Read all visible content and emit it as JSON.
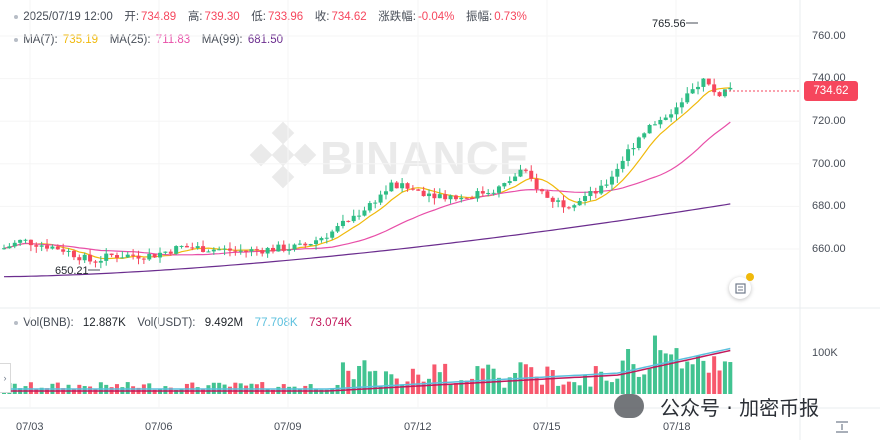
{
  "header": {
    "date": "2025/07/19 12:00",
    "open_label": "开:",
    "open": "734.89",
    "high_label": "高:",
    "high": "739.30",
    "low_label": "低:",
    "low": "733.96",
    "close_label": "收:",
    "close": "734.62",
    "change_label": "涨跌幅:",
    "change": "-0.04%",
    "amplitude_label": "振幅:",
    "amplitude": "0.73%"
  },
  "ma_legend": {
    "ma7_label": "MA(7):",
    "ma7": "735.19",
    "ma25_label": "MA(25):",
    "ma25": "711.83",
    "ma99_label": "MA(99):",
    "ma99": "681.50"
  },
  "volume_legend": {
    "vol_bnb_label": "Vol(BNB):",
    "vol_bnb": "12.887K",
    "vol_usdt_label": "Vol(USDT):",
    "vol_usdt": "9.492M",
    "vol_ma1": "77.708K",
    "vol_ma2": "73.074K"
  },
  "price_axis": [
    "760.00",
    "740.00",
    "720.00",
    "700.00",
    "680.00",
    "660.00"
  ],
  "volume_axis": [
    "100K"
  ],
  "date_axis": [
    "07/03",
    "07/06",
    "07/09",
    "07/12",
    "07/15",
    "07/18"
  ],
  "current_price": "734.62",
  "high_marker": "765.56",
  "low_marker": "650.21",
  "watermark": "BINANCE",
  "footer_watermark": "公众号 · 加密币报",
  "colors": {
    "up": "#2ebd85",
    "down": "#f6465d",
    "ma7": "#f0b90b",
    "ma25": "#e84fa8",
    "ma99": "#6b2d8e",
    "vol_ma1": "#5bc0de",
    "vol_ma2": "#c2185b"
  }
}
